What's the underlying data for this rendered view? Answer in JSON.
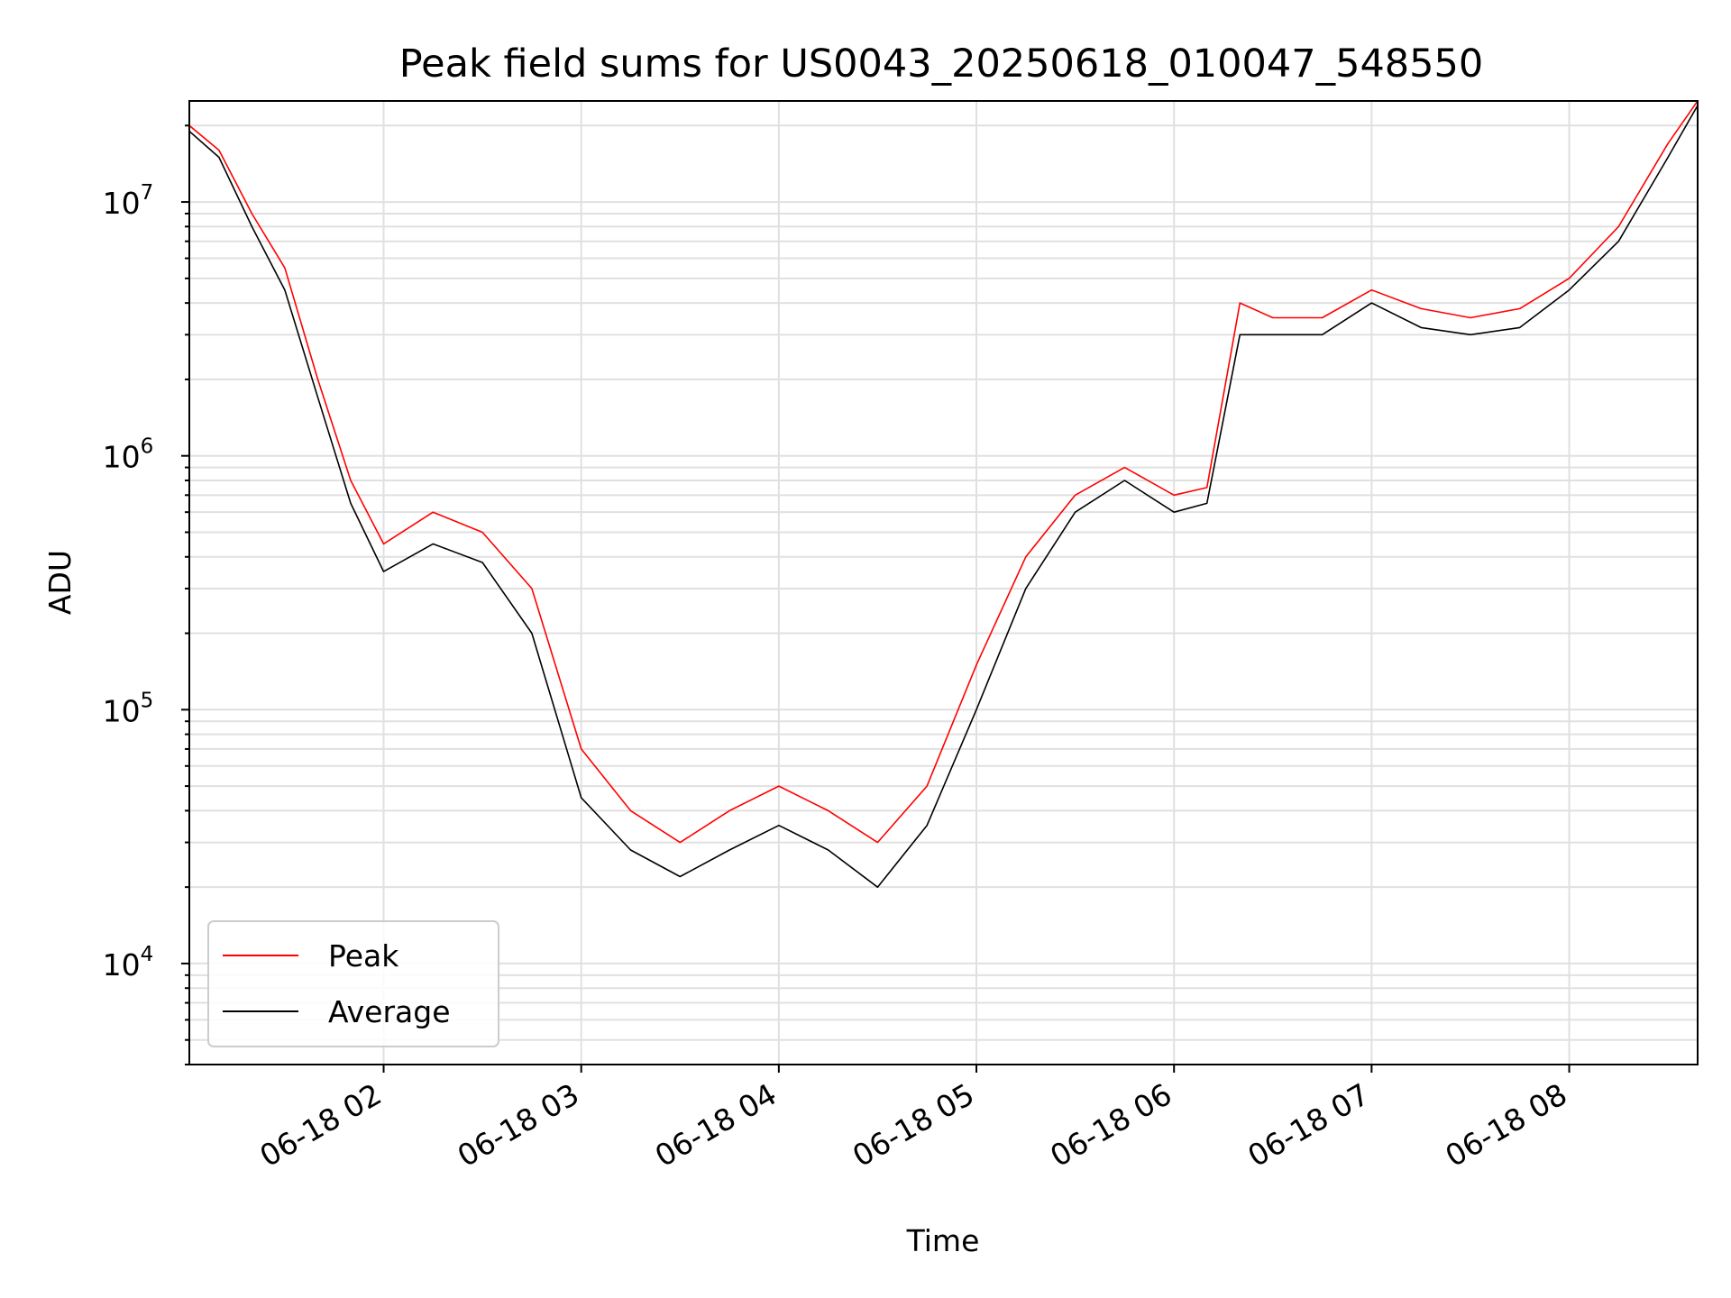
{
  "chart_data": {
    "type": "line",
    "title": "Peak field sums for US0043_20250618_010047_548550",
    "xlabel": "Time",
    "ylabel": "ADU",
    "yscale": "log",
    "xlim": [
      "2025-06-18 01:01",
      "2025-06-18 08:39"
    ],
    "ylim": [
      4000,
      25000000
    ],
    "x_ticks": [
      "06-18 02",
      "06-18 03",
      "06-18 04",
      "06-18 05",
      "06-18 06",
      "06-18 07",
      "06-18 08"
    ],
    "y_ticks": [
      {
        "base": "10",
        "exp": "4"
      },
      {
        "base": "10",
        "exp": "5"
      },
      {
        "base": "10",
        "exp": "6"
      },
      {
        "base": "10",
        "exp": "7"
      }
    ],
    "grid": true,
    "legend_position": "lower-left",
    "series": [
      {
        "name": "Peak",
        "color": "#ff0000",
        "x": [
          "2025-06-18 01:01",
          "2025-06-18 01:10",
          "2025-06-18 01:20",
          "2025-06-18 01:30",
          "2025-06-18 01:40",
          "2025-06-18 01:50",
          "2025-06-18 02:00",
          "2025-06-18 02:15",
          "2025-06-18 02:30",
          "2025-06-18 02:45",
          "2025-06-18 03:00",
          "2025-06-18 03:15",
          "2025-06-18 03:30",
          "2025-06-18 03:45",
          "2025-06-18 04:00",
          "2025-06-18 04:15",
          "2025-06-18 04:30",
          "2025-06-18 04:45",
          "2025-06-18 05:00",
          "2025-06-18 05:15",
          "2025-06-18 05:30",
          "2025-06-18 05:45",
          "2025-06-18 06:00",
          "2025-06-18 06:10",
          "2025-06-18 06:20",
          "2025-06-18 06:30",
          "2025-06-18 06:45",
          "2025-06-18 07:00",
          "2025-06-18 07:15",
          "2025-06-18 07:30",
          "2025-06-18 07:45",
          "2025-06-18 08:00",
          "2025-06-18 08:15",
          "2025-06-18 08:30",
          "2025-06-18 08:39"
        ],
        "values": [
          20000000,
          16000000,
          9000000,
          5500000,
          2000000,
          800000,
          450000,
          600000,
          500000,
          300000,
          70000,
          40000,
          30000,
          40000,
          50000,
          40000,
          30000,
          50000,
          150000,
          400000,
          700000,
          900000,
          700000,
          750000,
          4000000,
          3500000,
          3500000,
          4500000,
          3800000,
          3500000,
          3800000,
          5000000,
          8000000,
          17000000,
          25000000
        ]
      },
      {
        "name": "Average",
        "color": "#000000",
        "x": [
          "2025-06-18 01:01",
          "2025-06-18 01:10",
          "2025-06-18 01:20",
          "2025-06-18 01:30",
          "2025-06-18 01:40",
          "2025-06-18 01:50",
          "2025-06-18 02:00",
          "2025-06-18 02:15",
          "2025-06-18 02:30",
          "2025-06-18 02:45",
          "2025-06-18 03:00",
          "2025-06-18 03:15",
          "2025-06-18 03:30",
          "2025-06-18 03:45",
          "2025-06-18 04:00",
          "2025-06-18 04:15",
          "2025-06-18 04:30",
          "2025-06-18 04:45",
          "2025-06-18 05:00",
          "2025-06-18 05:15",
          "2025-06-18 05:30",
          "2025-06-18 05:45",
          "2025-06-18 06:00",
          "2025-06-18 06:10",
          "2025-06-18 06:20",
          "2025-06-18 06:30",
          "2025-06-18 06:45",
          "2025-06-18 07:00",
          "2025-06-18 07:15",
          "2025-06-18 07:30",
          "2025-06-18 07:45",
          "2025-06-18 08:00",
          "2025-06-18 08:15",
          "2025-06-18 08:30",
          "2025-06-18 08:39"
        ],
        "values": [
          19000000,
          15000000,
          8000000,
          4500000,
          1700000,
          650000,
          350000,
          450000,
          380000,
          200000,
          45000,
          28000,
          22000,
          28000,
          35000,
          28000,
          20000,
          35000,
          100000,
          300000,
          600000,
          800000,
          600000,
          650000,
          3000000,
          3000000,
          3000000,
          4000000,
          3200000,
          3000000,
          3200000,
          4500000,
          7000000,
          15000000,
          24000000
        ]
      }
    ]
  }
}
